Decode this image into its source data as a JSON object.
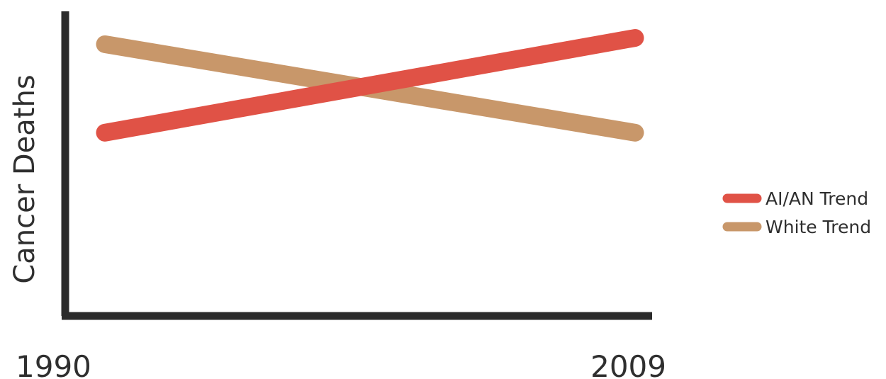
{
  "chart_data": {
    "type": "line",
    "title": "",
    "xlabel": "",
    "ylabel": "Cancer Deaths",
    "categories": [
      "1990",
      "2009"
    ],
    "series": [
      {
        "name": "AI/AN Trend",
        "values": [
          0.58,
          0.88
        ]
      },
      {
        "name": "White Trend",
        "values": [
          0.86,
          0.58
        ]
      }
    ],
    "ylim": [
      0,
      1
    ],
    "grid": false,
    "legend_position": "right",
    "colors": {
      "AI/AN Trend": "#e05246",
      "White Trend": "#c8976a",
      "axis": "#2b2b2b"
    }
  }
}
